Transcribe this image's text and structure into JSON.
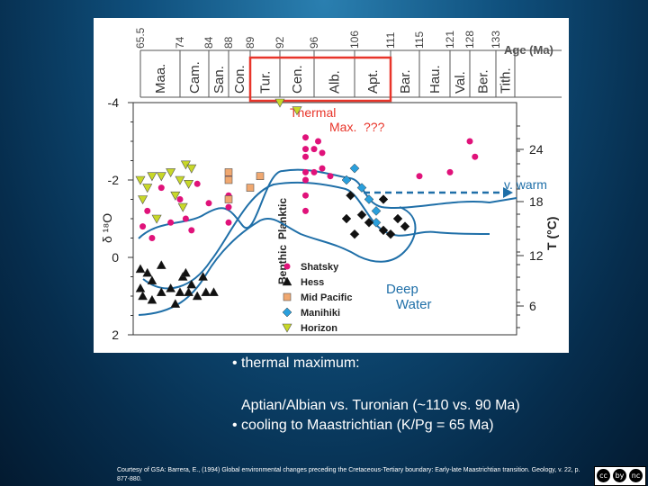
{
  "chart_data": {
    "type": "scatter",
    "age_axis": {
      "label": "Age (Ma)",
      "ticks": [
        "65.5",
        "74",
        "84",
        "88",
        "89",
        "92",
        "96",
        "106",
        "111",
        "115",
        "121",
        "128",
        "133"
      ],
      "stages": [
        "Maa.",
        "Cam.",
        "San.",
        "Con.",
        "Tur.",
        "Cen.",
        "Alb.",
        "Apt.",
        "Bar.",
        "Hau.",
        "Val.",
        "Ber.",
        "Tith."
      ],
      "highlight_color": "#e8352a"
    },
    "yleft": {
      "label": "δ ¹⁸O",
      "ticks": [
        "-4",
        "-2",
        "0",
        "2"
      ],
      "range": [
        -4,
        2
      ],
      "inverted": true
    },
    "yright": {
      "label": "T (°C)",
      "ticks": [
        "24",
        "18",
        "12",
        "6"
      ]
    },
    "annotations": {
      "thermal": "Thermal",
      "max": "Max.",
      "question": "???",
      "v_warm": "v. warm",
      "planktic": "Planktic",
      "benthic": "Benthic",
      "deep": "Deep",
      "water": "Water"
    },
    "legend": [
      {
        "label": "Shatsky",
        "color": "#e0127a",
        "marker": "circle"
      },
      {
        "label": "Hess",
        "color": "#111111",
        "marker": "triangle"
      },
      {
        "label": "Mid Pacific",
        "color": "#f0a870",
        "marker": "square"
      },
      {
        "label": "Manihiki",
        "color": "#2a9fdc",
        "marker": "diamond"
      },
      {
        "label": "Horizon",
        "color": "#c8d828",
        "marker": "triangle-down"
      }
    ],
    "series": [
      {
        "name": "Shatsky",
        "points": [
          [
            66,
            -0.8
          ],
          [
            67,
            -1.2
          ],
          [
            68,
            -0.5
          ],
          [
            70,
            -1.8
          ],
          [
            72,
            -0.9
          ],
          [
            74,
            -1.5
          ],
          [
            76,
            -1.0
          ],
          [
            78,
            -0.7
          ],
          [
            80,
            -1.9
          ],
          [
            84,
            -1.4
          ],
          [
            88,
            -2.1
          ],
          [
            88,
            -1.6
          ],
          [
            88,
            -1.3
          ],
          [
            88,
            -0.9
          ],
          [
            95,
            -3.1
          ],
          [
            95,
            -2.8
          ],
          [
            95,
            -2.6
          ],
          [
            95,
            -2.2
          ],
          [
            95,
            -2.0
          ],
          [
            95,
            -1.6
          ],
          [
            95,
            -1.2
          ],
          [
            96,
            -2.8
          ],
          [
            96,
            -2.2
          ],
          [
            97,
            -3.0
          ],
          [
            98,
            -2.7
          ],
          [
            98,
            -2.3
          ],
          [
            100,
            -2.1
          ],
          [
            115,
            -2.1
          ],
          [
            121,
            -2.2
          ],
          [
            128,
            -3.0
          ],
          [
            129,
            -2.6
          ]
        ]
      },
      {
        "name": "Hess",
        "points": [
          [
            65.5,
            0.3
          ],
          [
            65.5,
            0.8
          ],
          [
            66,
            1.0
          ],
          [
            67,
            0.4
          ],
          [
            68,
            1.1
          ],
          [
            68,
            0.6
          ],
          [
            70,
            0.9
          ],
          [
            70,
            0.2
          ],
          [
            72,
            0.8
          ],
          [
            73,
            1.2
          ],
          [
            74,
            0.9
          ],
          [
            75,
            0.5
          ],
          [
            76,
            0.4
          ],
          [
            77,
            0.9
          ],
          [
            78,
            0.7
          ],
          [
            80,
            1.0
          ],
          [
            82,
            0.5
          ],
          [
            83,
            0.9
          ],
          [
            85,
            0.9
          ]
        ]
      },
      {
        "name": "Mid Pacific",
        "points": [
          [
            88,
            -2.2
          ],
          [
            88,
            -2.0
          ],
          [
            88,
            -1.5
          ],
          [
            89,
            -1.8
          ],
          [
            90,
            -2.1
          ]
        ]
      },
      {
        "name": "Manihiki",
        "points": [
          [
            104,
            -2.0
          ],
          [
            106,
            -2.3
          ],
          [
            107,
            -1.8
          ],
          [
            108,
            -1.5
          ],
          [
            109,
            -1.2
          ],
          [
            109,
            -0.9
          ]
        ]
      },
      {
        "name": "Horizon",
        "points": [
          [
            65.5,
            -2.0
          ],
          [
            66,
            -1.5
          ],
          [
            67,
            -1.8
          ],
          [
            68,
            -2.1
          ],
          [
            69,
            -1.0
          ],
          [
            70,
            -2.1
          ],
          [
            72,
            -2.2
          ],
          [
            73,
            -1.6
          ],
          [
            74,
            -2.0
          ],
          [
            76,
            -2.4
          ],
          [
            78,
            -2.3
          ],
          [
            77,
            -1.9
          ],
          [
            75,
            -1.3
          ],
          [
            92,
            -4.0
          ],
          [
            94,
            -3.8
          ]
        ]
      },
      {
        "name": "Benthic-black",
        "points": [
          [
            104,
            -1.0
          ],
          [
            105,
            -1.6
          ],
          [
            106,
            -0.6
          ],
          [
            107,
            -1.1
          ],
          [
            108,
            -0.9
          ],
          [
            110,
            -1.5
          ],
          [
            110,
            -0.7
          ],
          [
            111,
            -0.6
          ],
          [
            112,
            -1.0
          ],
          [
            113,
            -0.8
          ]
        ]
      }
    ]
  },
  "text": {
    "bullet1": "• thermal maximum:",
    "bullet2": "Aptian/Albian vs. Turonian (~110 vs. 90 Ma)",
    "bullet3": "• cooling to Maastrichtian (K/Pg = 65 Ma)",
    "credit": "Courtesy of GSA: Barrera, E., (1994) Global environmental changes preceding the Cretaceous-Tertiary boundary: Early-late Maastrichtian transition. Geology, v. 22, p. 877-880.",
    "cc_icons": [
      "cc",
      "by",
      "nc",
      "sa"
    ]
  }
}
